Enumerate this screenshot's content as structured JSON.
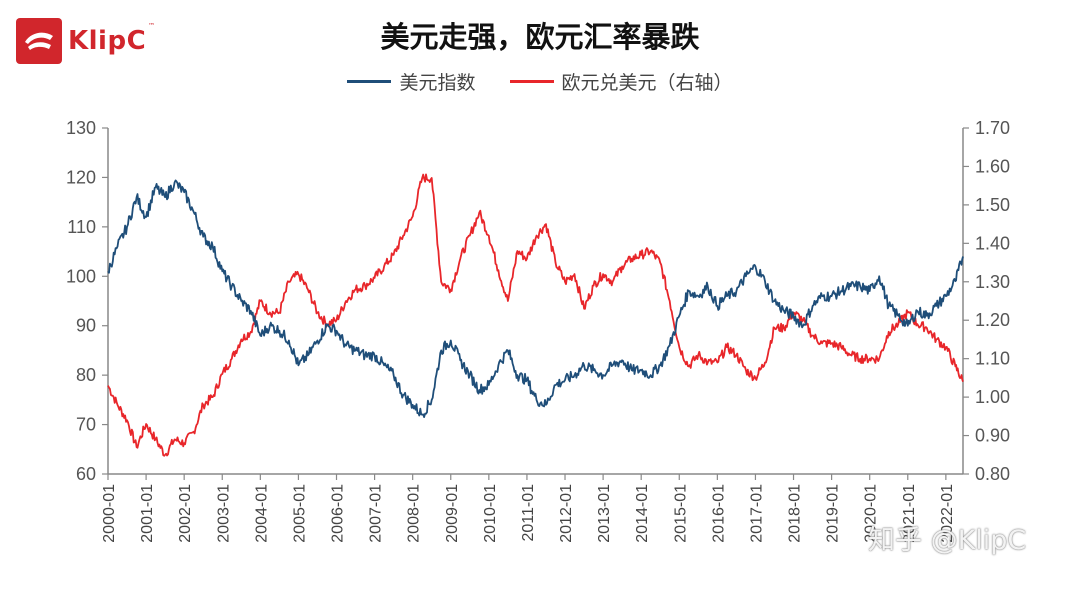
{
  "logo": {
    "text": "KlipC",
    "tm": "™",
    "icon": "klipc-logo-icon",
    "color": "#d1262c"
  },
  "title": "美元走强，欧元汇率暴跌",
  "watermark": "知乎 @KlipC",
  "colors": {
    "usd": "#1f4e79",
    "eur": "#e8262a",
    "axis": "#888888"
  },
  "chart_data": {
    "type": "line",
    "title": "美元走强，欧元汇率暴跌",
    "legend_position": "top-center",
    "grid": false,
    "left_axis": {
      "ylim": [
        60,
        130
      ],
      "ticks": [
        "130",
        "120",
        "110",
        "100",
        "90",
        "80",
        "70",
        "60"
      ]
    },
    "right_axis": {
      "ylim": [
        0.8,
        1.7
      ],
      "ticks": [
        "1.70",
        "1.60",
        "1.50",
        "1.40",
        "1.30",
        "1.20",
        "1.10",
        "1.00",
        "0.90",
        "0.80"
      ]
    },
    "x_ticks": [
      "2000-01",
      "2001-01",
      "2002-01",
      "2003-01",
      "2004-01",
      "2005-01",
      "2006-01",
      "2007-01",
      "2008-01",
      "2009-01",
      "2010-01",
      "2011-01",
      "2012-01",
      "2013-01",
      "2014-01",
      "2015-01",
      "2016-01",
      "2017-01",
      "2018-01",
      "2019-01",
      "2020-01",
      "2021-01",
      "2022-01"
    ],
    "x_range": [
      2000.0,
      2022.45
    ],
    "series": [
      {
        "name": "美元指数",
        "axis": "left",
        "color": "#1f4e79",
        "x": [
          2000.0,
          2000.25,
          2000.5,
          2000.75,
          2001.0,
          2001.25,
          2001.5,
          2001.75,
          2002.0,
          2002.25,
          2002.5,
          2002.75,
          2003.0,
          2003.25,
          2003.5,
          2003.75,
          2004.0,
          2004.25,
          2004.5,
          2004.75,
          2005.0,
          2005.25,
          2005.5,
          2005.75,
          2006.0,
          2006.25,
          2006.5,
          2006.75,
          2007.0,
          2007.25,
          2007.5,
          2007.75,
          2008.0,
          2008.25,
          2008.5,
          2008.75,
          2009.0,
          2009.25,
          2009.5,
          2009.75,
          2010.0,
          2010.25,
          2010.5,
          2010.75,
          2011.0,
          2011.25,
          2011.5,
          2011.75,
          2012.0,
          2012.25,
          2012.5,
          2012.75,
          2013.0,
          2013.25,
          2013.5,
          2013.75,
          2014.0,
          2014.25,
          2014.5,
          2014.75,
          2015.0,
          2015.25,
          2015.5,
          2015.75,
          2016.0,
          2016.25,
          2016.5,
          2016.75,
          2017.0,
          2017.25,
          2017.5,
          2017.75,
          2018.0,
          2018.25,
          2018.5,
          2018.75,
          2019.0,
          2019.25,
          2019.5,
          2019.75,
          2020.0,
          2020.25,
          2020.5,
          2020.75,
          2021.0,
          2021.25,
          2021.5,
          2021.75,
          2022.0,
          2022.25,
          2022.45
        ],
        "values": [
          101,
          106,
          110,
          116,
          112,
          118,
          116,
          119,
          117,
          113,
          108,
          106,
          101,
          98,
          95,
          93,
          88,
          90,
          89,
          87,
          82,
          84,
          87,
          90,
          89,
          86,
          85,
          84,
          84,
          82,
          80,
          76,
          74,
          72,
          75,
          85,
          87,
          83,
          80,
          77,
          78,
          82,
          85,
          80,
          79,
          75,
          74,
          78,
          79,
          80,
          82,
          81,
          80,
          82,
          83,
          81,
          81,
          80,
          82,
          86,
          92,
          97,
          96,
          98,
          94,
          96,
          97,
          100,
          102,
          99,
          95,
          93,
          92,
          90,
          94,
          96,
          96,
          97,
          98,
          98,
          97,
          100,
          94,
          92,
          90,
          93,
          92,
          94,
          96,
          99,
          104
        ]
      },
      {
        "name": "欧元兑美元（右轴）",
        "axis": "right",
        "color": "#e8262a",
        "x": [
          2000.0,
          2000.25,
          2000.5,
          2000.75,
          2001.0,
          2001.25,
          2001.5,
          2001.75,
          2002.0,
          2002.25,
          2002.5,
          2002.75,
          2003.0,
          2003.25,
          2003.5,
          2003.75,
          2004.0,
          2004.25,
          2004.5,
          2004.75,
          2005.0,
          2005.25,
          2005.5,
          2005.75,
          2006.0,
          2006.25,
          2006.5,
          2006.75,
          2007.0,
          2007.25,
          2007.5,
          2007.75,
          2008.0,
          2008.25,
          2008.5,
          2008.75,
          2009.0,
          2009.25,
          2009.5,
          2009.75,
          2010.0,
          2010.25,
          2010.5,
          2010.75,
          2011.0,
          2011.25,
          2011.5,
          2011.75,
          2012.0,
          2012.25,
          2012.5,
          2012.75,
          2013.0,
          2013.25,
          2013.5,
          2013.75,
          2014.0,
          2014.25,
          2014.5,
          2014.75,
          2015.0,
          2015.25,
          2015.5,
          2015.75,
          2016.0,
          2016.25,
          2016.5,
          2016.75,
          2017.0,
          2017.25,
          2017.5,
          2017.75,
          2018.0,
          2018.25,
          2018.5,
          2018.75,
          2019.0,
          2019.25,
          2019.5,
          2019.75,
          2020.0,
          2020.25,
          2020.5,
          2020.75,
          2021.0,
          2021.25,
          2021.5,
          2021.75,
          2022.0,
          2022.25,
          2022.45
        ],
        "values": [
          1.03,
          0.98,
          0.94,
          0.87,
          0.93,
          0.89,
          0.85,
          0.89,
          0.88,
          0.91,
          0.98,
          1.0,
          1.06,
          1.1,
          1.15,
          1.17,
          1.25,
          1.22,
          1.22,
          1.3,
          1.32,
          1.28,
          1.22,
          1.19,
          1.2,
          1.25,
          1.28,
          1.29,
          1.31,
          1.34,
          1.37,
          1.42,
          1.47,
          1.57,
          1.57,
          1.3,
          1.28,
          1.36,
          1.42,
          1.48,
          1.42,
          1.33,
          1.25,
          1.38,
          1.36,
          1.42,
          1.45,
          1.35,
          1.3,
          1.32,
          1.23,
          1.29,
          1.32,
          1.3,
          1.34,
          1.36,
          1.37,
          1.38,
          1.35,
          1.25,
          1.13,
          1.08,
          1.11,
          1.09,
          1.09,
          1.13,
          1.11,
          1.07,
          1.05,
          1.09,
          1.18,
          1.18,
          1.22,
          1.2,
          1.16,
          1.14,
          1.14,
          1.13,
          1.11,
          1.1,
          1.1,
          1.1,
          1.17,
          1.19,
          1.22,
          1.19,
          1.18,
          1.15,
          1.13,
          1.08,
          1.04
        ]
      }
    ]
  }
}
